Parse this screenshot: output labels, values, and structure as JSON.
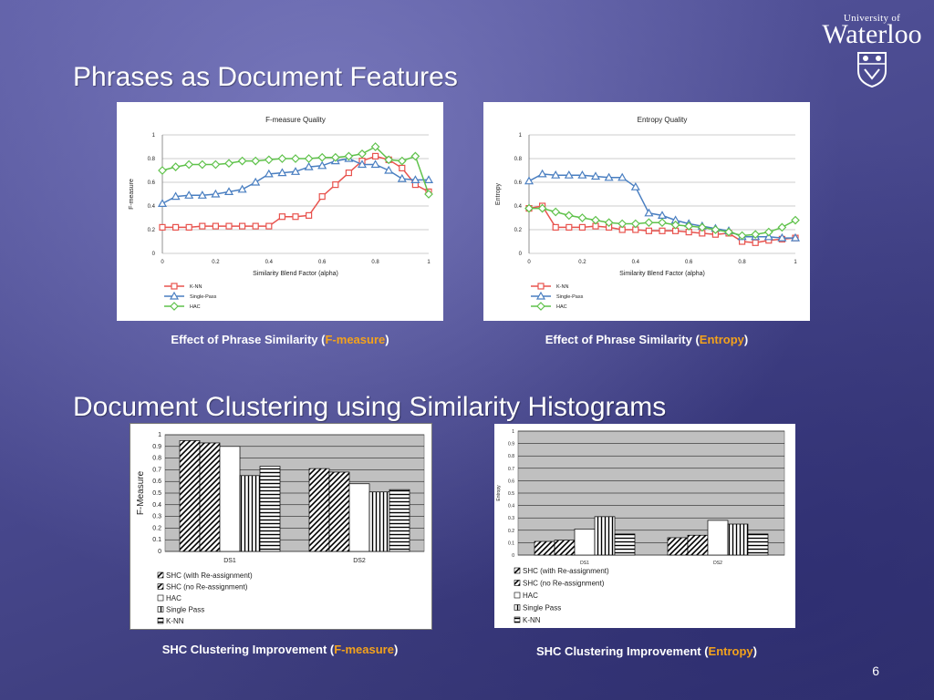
{
  "slide": {
    "title1": "Phrases as Document Features",
    "title2": "Document Clustering using Similarity Histograms",
    "logo_small": "University of",
    "logo_big": "Waterloo",
    "page_number": "6"
  },
  "captions": {
    "fm_line_prefix": "Effect of Phrase Similarity (",
    "fm_line_highlight": "F-measure",
    "fm_line_suffix": ")",
    "en_line_prefix": "Effect of Phrase Similarity (",
    "en_line_highlight": "Entropy",
    "en_line_suffix": ")",
    "fm_bar_prefix": "SHC Clustering Improvement (",
    "fm_bar_highlight": "F-measure",
    "fm_bar_suffix": ")",
    "en_bar_prefix": "SHC Clustering Improvement (",
    "en_bar_highlight": "Entropy",
    "en_bar_suffix": ")"
  },
  "chart_data": [
    {
      "type": "line",
      "title": "F-measure Quality",
      "xlabel": "Similarity Blend Factor (alpha)",
      "ylabel": "F-measure",
      "xlim": [
        0,
        1
      ],
      "ylim": [
        0,
        1
      ],
      "xticks": [
        "0",
        "0.2",
        "0.4",
        "0.6",
        "0.8",
        "1"
      ],
      "yticks": [
        "0",
        "0.2",
        "0.4",
        "0.6",
        "0.8",
        "1"
      ],
      "grid": true,
      "legend": "bottom-left",
      "x": [
        0,
        0.05,
        0.1,
        0.15,
        0.2,
        0.25,
        0.3,
        0.35,
        0.4,
        0.45,
        0.5,
        0.55,
        0.6,
        0.65,
        0.7,
        0.75,
        0.8,
        0.85,
        0.9,
        0.95,
        1
      ],
      "series": [
        {
          "name": "K-NN",
          "color": "#e8534e",
          "marker": "square",
          "values": [
            0.22,
            0.22,
            0.22,
            0.23,
            0.23,
            0.23,
            0.23,
            0.23,
            0.23,
            0.31,
            0.31,
            0.32,
            0.48,
            0.58,
            0.68,
            0.78,
            0.82,
            0.79,
            0.72,
            0.58,
            0.52
          ]
        },
        {
          "name": "Single-Pass",
          "color": "#4a7fc1",
          "marker": "triangle",
          "values": [
            0.42,
            0.48,
            0.49,
            0.49,
            0.5,
            0.52,
            0.54,
            0.6,
            0.67,
            0.68,
            0.69,
            0.73,
            0.74,
            0.78,
            0.8,
            0.75,
            0.75,
            0.7,
            0.63,
            0.62,
            0.62
          ]
        },
        {
          "name": "HAC",
          "color": "#5fc24b",
          "marker": "diamond",
          "values": [
            0.7,
            0.73,
            0.75,
            0.75,
            0.75,
            0.76,
            0.78,
            0.78,
            0.79,
            0.8,
            0.8,
            0.8,
            0.81,
            0.81,
            0.82,
            0.84,
            0.9,
            0.79,
            0.78,
            0.82,
            0.5
          ]
        }
      ]
    },
    {
      "type": "line",
      "title": "Entropy Quality",
      "xlabel": "Similarity Blend Factor (alpha)",
      "ylabel": "Entropy",
      "xlim": [
        0,
        1
      ],
      "ylim": [
        0,
        1
      ],
      "xticks": [
        "0",
        "0.2",
        "0.4",
        "0.6",
        "0.8",
        "1"
      ],
      "yticks": [
        "0",
        "0.2",
        "0.4",
        "0.6",
        "0.8",
        "1"
      ],
      "grid": true,
      "legend": "bottom-left",
      "x": [
        0,
        0.05,
        0.1,
        0.15,
        0.2,
        0.25,
        0.3,
        0.35,
        0.4,
        0.45,
        0.5,
        0.55,
        0.6,
        0.65,
        0.7,
        0.75,
        0.8,
        0.85,
        0.9,
        0.95,
        1
      ],
      "series": [
        {
          "name": "K-NN",
          "color": "#e8534e",
          "marker": "square",
          "values": [
            0.38,
            0.4,
            0.22,
            0.22,
            0.22,
            0.23,
            0.22,
            0.2,
            0.2,
            0.19,
            0.19,
            0.19,
            0.18,
            0.17,
            0.16,
            0.17,
            0.1,
            0.09,
            0.11,
            0.12,
            0.13
          ]
        },
        {
          "name": "Single-Pass",
          "color": "#4a7fc1",
          "marker": "triangle",
          "values": [
            0.61,
            0.67,
            0.66,
            0.66,
            0.66,
            0.65,
            0.64,
            0.64,
            0.56,
            0.34,
            0.32,
            0.28,
            0.25,
            0.23,
            0.21,
            0.19,
            0.14,
            0.14,
            0.14,
            0.13,
            0.13
          ]
        },
        {
          "name": "HAC",
          "color": "#5fc24b",
          "marker": "diamond",
          "values": [
            0.38,
            0.38,
            0.35,
            0.32,
            0.3,
            0.28,
            0.26,
            0.25,
            0.25,
            0.26,
            0.26,
            0.24,
            0.23,
            0.22,
            0.2,
            0.18,
            0.15,
            0.16,
            0.18,
            0.22,
            0.28
          ]
        }
      ]
    },
    {
      "type": "bar",
      "ylabel": "F-Measure",
      "categories": [
        "DS1",
        "DS2"
      ],
      "ylim": [
        0,
        1
      ],
      "yticks": [
        "0",
        "0.1",
        "0.2",
        "0.3",
        "0.4",
        "0.5",
        "0.6",
        "0.7",
        "0.8",
        "0.9",
        "1"
      ],
      "grid": true,
      "legend": "bottom",
      "series": [
        {
          "name": "SHC (with Re-assignment)",
          "pattern": "diag",
          "values": [
            0.95,
            0.71
          ]
        },
        {
          "name": "SHC (no Re-assignment)",
          "pattern": "diag",
          "values": [
            0.93,
            0.68
          ]
        },
        {
          "name": "HAC",
          "pattern": "white",
          "values": [
            0.9,
            0.58
          ]
        },
        {
          "name": "Single Pass",
          "pattern": "vert",
          "values": [
            0.65,
            0.51
          ]
        },
        {
          "name": "K-NN",
          "pattern": "horiz",
          "values": [
            0.73,
            0.53
          ]
        }
      ]
    },
    {
      "type": "bar",
      "ylabel": "Entropy",
      "categories": [
        "DS1",
        "DS2"
      ],
      "ylim": [
        0,
        1
      ],
      "yticks": [
        "0",
        "0.1",
        "0.2",
        "0.3",
        "0.4",
        "0.5",
        "0.6",
        "0.7",
        "0.8",
        "0.9",
        "1"
      ],
      "grid": true,
      "legend": "bottom",
      "series": [
        {
          "name": "SHC (with Re-assignment)",
          "pattern": "diag",
          "values": [
            0.11,
            0.14
          ]
        },
        {
          "name": "SHC (no Re-assignment)",
          "pattern": "diag",
          "values": [
            0.12,
            0.16
          ]
        },
        {
          "name": "HAC",
          "pattern": "white",
          "values": [
            0.21,
            0.28
          ]
        },
        {
          "name": "Single Pass",
          "pattern": "vert",
          "values": [
            0.31,
            0.25
          ]
        },
        {
          "name": "K-NN",
          "pattern": "horiz",
          "values": [
            0.17,
            0.17
          ]
        }
      ]
    }
  ]
}
